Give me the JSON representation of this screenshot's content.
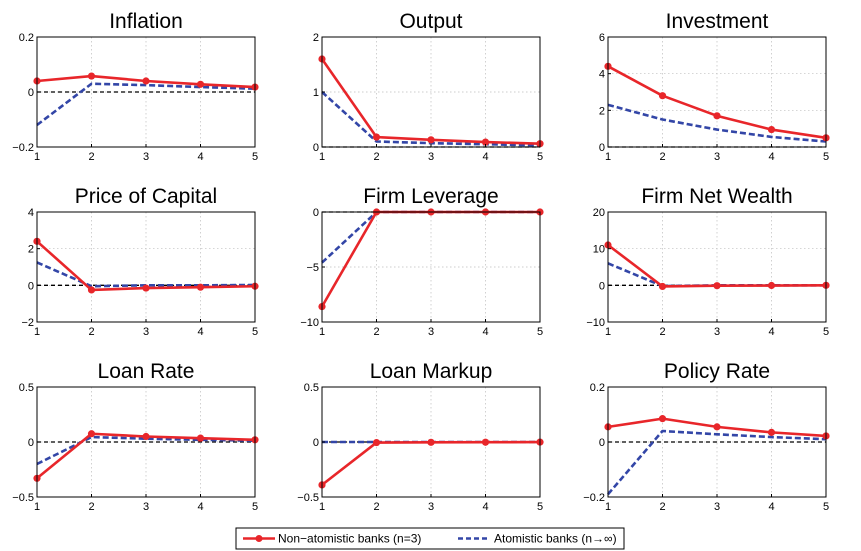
{
  "colors": {
    "non_atomistic": "#e8262a",
    "atomistic": "#3346a7",
    "zero_line": "#000000",
    "grid": "#bdbdbd",
    "axes": "#000000"
  },
  "legend": {
    "non_atomistic_label": "Non−atomistic banks (n=3)",
    "atomistic_label": "Atomistic banks (n→∞)",
    "placement": "bottom-center"
  },
  "chart_data": [
    {
      "type": "line",
      "title": "Inflation",
      "x": [
        1,
        2,
        3,
        4,
        5
      ],
      "xticks": [
        "1",
        "2",
        "3",
        "4",
        "5"
      ],
      "ylim": [
        -0.2,
        0.2
      ],
      "yticks": [
        -0.2,
        0,
        0.2
      ],
      "ytick_labels": [
        "−0.2",
        "0",
        "0.2"
      ],
      "grid": true,
      "series": [
        {
          "name": "Non−atomistic banks (n=3)",
          "values": [
            0.04,
            0.058,
            0.04,
            0.028,
            0.018
          ],
          "style": "solid-markers"
        },
        {
          "name": "Atomistic banks (n→∞)",
          "values": [
            -0.12,
            0.03,
            0.025,
            0.018,
            0.012
          ],
          "style": "dashed"
        }
      ]
    },
    {
      "type": "line",
      "title": "Output",
      "x": [
        1,
        2,
        3,
        4,
        5
      ],
      "xticks": [
        "1",
        "2",
        "3",
        "4",
        "5"
      ],
      "ylim": [
        0,
        2
      ],
      "yticks": [
        0,
        1,
        2
      ],
      "ytick_labels": [
        "0",
        "1",
        "2"
      ],
      "grid": true,
      "series": [
        {
          "name": "Non−atomistic banks (n=3)",
          "values": [
            1.6,
            0.18,
            0.13,
            0.09,
            0.06
          ],
          "style": "solid-markers"
        },
        {
          "name": "Atomistic banks (n→∞)",
          "values": [
            1.0,
            0.1,
            0.07,
            0.05,
            0.03
          ],
          "style": "dashed"
        }
      ]
    },
    {
      "type": "line",
      "title": "Investment",
      "x": [
        1,
        2,
        3,
        4,
        5
      ],
      "xticks": [
        "1",
        "2",
        "3",
        "4",
        "5"
      ],
      "ylim": [
        0,
        6
      ],
      "yticks": [
        0,
        2,
        4,
        6
      ],
      "ytick_labels": [
        "0",
        "2",
        "4",
        "6"
      ],
      "grid": true,
      "series": [
        {
          "name": "Non−atomistic banks (n=3)",
          "values": [
            4.4,
            2.8,
            1.7,
            0.95,
            0.5
          ],
          "style": "solid-markers"
        },
        {
          "name": "Atomistic banks (n→∞)",
          "values": [
            2.3,
            1.5,
            0.95,
            0.55,
            0.3
          ],
          "style": "dashed"
        }
      ]
    },
    {
      "type": "line",
      "title": "Price of Capital",
      "x": [
        1,
        2,
        3,
        4,
        5
      ],
      "xticks": [
        "1",
        "2",
        "3",
        "4",
        "5"
      ],
      "ylim": [
        -2,
        4
      ],
      "yticks": [
        -2,
        0,
        2,
        4
      ],
      "ytick_labels": [
        "−2",
        "0",
        "2",
        "4"
      ],
      "grid": true,
      "series": [
        {
          "name": "Non−atomistic banks (n=3)",
          "values": [
            2.4,
            -0.25,
            -0.15,
            -0.1,
            -0.05
          ],
          "style": "solid-markers"
        },
        {
          "name": "Atomistic banks (n→∞)",
          "values": [
            1.25,
            -0.05,
            0.0,
            0.0,
            0.02
          ],
          "style": "dashed"
        }
      ]
    },
    {
      "type": "line",
      "title": "Firm Leverage",
      "x": [
        1,
        2,
        3,
        4,
        5
      ],
      "xticks": [
        "1",
        "2",
        "3",
        "4",
        "5"
      ],
      "ylim": [
        -10,
        0
      ],
      "yticks": [
        -10,
        -5,
        0
      ],
      "ytick_labels": [
        "−10",
        "−5",
        "0"
      ],
      "grid": true,
      "series": [
        {
          "name": "Non−atomistic banks (n=3)",
          "values": [
            -8.6,
            0,
            0,
            0,
            0
          ],
          "style": "solid-markers"
        },
        {
          "name": "Atomistic banks (n→∞)",
          "values": [
            -4.6,
            0,
            0,
            0,
            0
          ],
          "style": "dashed"
        }
      ]
    },
    {
      "type": "line",
      "title": "Firm Net Wealth",
      "x": [
        1,
        2,
        3,
        4,
        5
      ],
      "xticks": [
        "1",
        "2",
        "3",
        "4",
        "5"
      ],
      "ylim": [
        -10,
        20
      ],
      "yticks": [
        -10,
        0,
        10,
        20
      ],
      "ytick_labels": [
        "−10",
        "0",
        "10",
        "20"
      ],
      "grid": true,
      "series": [
        {
          "name": "Non−atomistic banks (n=3)",
          "values": [
            11,
            -0.3,
            -0.1,
            -0.05,
            0.0
          ],
          "style": "solid-markers"
        },
        {
          "name": "Atomistic banks (n→∞)",
          "values": [
            6,
            -0.2,
            0.0,
            0.0,
            0.0
          ],
          "style": "dashed"
        }
      ]
    },
    {
      "type": "line",
      "title": "Loan Rate",
      "x": [
        1,
        2,
        3,
        4,
        5
      ],
      "xticks": [
        "1",
        "2",
        "3",
        "4",
        "5"
      ],
      "ylim": [
        -0.5,
        0.5
      ],
      "yticks": [
        -0.5,
        0,
        0.5
      ],
      "ytick_labels": [
        "−0.5",
        "0",
        "0.5"
      ],
      "grid": true,
      "series": [
        {
          "name": "Non−atomistic banks (n=3)",
          "values": [
            -0.33,
            0.075,
            0.05,
            0.035,
            0.02
          ],
          "style": "solid-markers"
        },
        {
          "name": "Atomistic banks (n→∞)",
          "values": [
            -0.2,
            0.045,
            0.03,
            0.02,
            0.012
          ],
          "style": "dashed"
        }
      ]
    },
    {
      "type": "line",
      "title": "Loan Markup",
      "x": [
        1,
        2,
        3,
        4,
        5
      ],
      "xticks": [
        "1",
        "2",
        "3",
        "4",
        "5"
      ],
      "ylim": [
        -0.5,
        0.5
      ],
      "yticks": [
        -0.5,
        0,
        0.5
      ],
      "ytick_labels": [
        "−0.5",
        "0",
        "0.5"
      ],
      "grid": true,
      "series": [
        {
          "name": "Non−atomistic banks (n=3)",
          "values": [
            -0.39,
            -0.005,
            -0.003,
            -0.002,
            -0.001
          ],
          "style": "solid-markers"
        },
        {
          "name": "Atomistic banks (n→∞)",
          "values": [
            0.0,
            0.0,
            0.0,
            0.0,
            0.0
          ],
          "style": "dashed"
        }
      ]
    },
    {
      "type": "line",
      "title": "Policy Rate",
      "x": [
        1,
        2,
        3,
        4,
        5
      ],
      "xticks": [
        "1",
        "2",
        "3",
        "4",
        "5"
      ],
      "ylim": [
        -0.2,
        0.2
      ],
      "yticks": [
        -0.2,
        0,
        0.2
      ],
      "ytick_labels": [
        "−0.2",
        "0",
        "0.2"
      ],
      "grid": true,
      "series": [
        {
          "name": "Non−atomistic banks (n=3)",
          "values": [
            0.055,
            0.085,
            0.055,
            0.035,
            0.022
          ],
          "style": "solid-markers"
        },
        {
          "name": "Atomistic banks (n→∞)",
          "values": [
            -0.19,
            0.04,
            0.028,
            0.018,
            0.01
          ],
          "style": "dashed"
        }
      ]
    }
  ]
}
